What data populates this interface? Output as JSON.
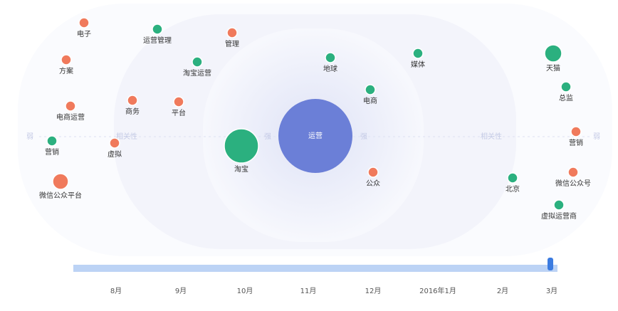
{
  "center": {
    "label": "运营",
    "color": "#6b7fd7"
  },
  "relevance_labels": [
    "弱",
    "相关性",
    "强",
    "强",
    "相关性",
    "弱"
  ],
  "nodes": [
    {
      "label": "电子",
      "color": "#f07a5c"
    },
    {
      "label": "方案",
      "color": "#f07a5c"
    },
    {
      "label": "电商运营",
      "color": "#f07a5c"
    },
    {
      "label": "营销",
      "color": "#2bb07f"
    },
    {
      "label": "微信公众平台",
      "color": "#f07a5c"
    },
    {
      "label": "运营管理",
      "color": "#2bb07f"
    },
    {
      "label": "管理",
      "color": "#f07a5c"
    },
    {
      "label": "淘宝运营",
      "color": "#2bb07f"
    },
    {
      "label": "商务",
      "color": "#f07a5c"
    },
    {
      "label": "平台",
      "color": "#f07a5c"
    },
    {
      "label": "虚拟",
      "color": "#f07a5c"
    },
    {
      "label": "淘宝",
      "color": "#2bb07f"
    },
    {
      "label": "地球",
      "color": "#2bb07f"
    },
    {
      "label": "媒体",
      "color": "#2bb07f"
    },
    {
      "label": "电商",
      "color": "#2bb07f"
    },
    {
      "label": "公众",
      "color": "#f07a5c"
    },
    {
      "label": "天猫",
      "color": "#2bb07f"
    },
    {
      "label": "总监",
      "color": "#2bb07f"
    },
    {
      "label": "营销",
      "color": "#f07a5c"
    },
    {
      "label": "微信公众号",
      "color": "#f07a5c"
    },
    {
      "label": "北京",
      "color": "#2bb07f"
    },
    {
      "label": "虚拟运营商",
      "color": "#2bb07f"
    }
  ],
  "timeline": [
    "8月",
    "9月",
    "10月",
    "11月",
    "12月",
    "2016年1月",
    "2月",
    "3月"
  ]
}
